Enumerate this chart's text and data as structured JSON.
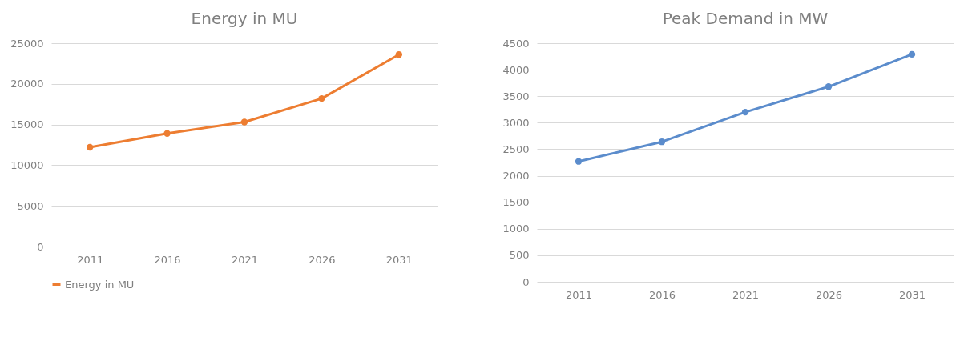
{
  "chart_data": [
    {
      "type": "line",
      "title": "Energy in MU",
      "categories": [
        "2011",
        "2016",
        "2021",
        "2026",
        "2031"
      ],
      "series": [
        {
          "name": "Energy in MU",
          "color": "#ed7d31",
          "values": [
            12200,
            13900,
            15300,
            18200,
            23600
          ]
        }
      ],
      "ylim": [
        0,
        25000
      ],
      "yticks": [
        0,
        5000,
        10000,
        15000,
        20000,
        25000
      ],
      "grid": "y",
      "legend": "bottom",
      "marker": "circle"
    },
    {
      "type": "line",
      "title": "Peak Demand in MW",
      "categories": [
        "2011",
        "2016",
        "2021",
        "2026",
        "2031"
      ],
      "series": [
        {
          "color": "#5b8ccc",
          "values": [
            2270,
            2640,
            3200,
            3680,
            4290
          ]
        }
      ],
      "ylim": [
        0,
        4500
      ],
      "yticks": [
        0,
        500,
        1000,
        1500,
        2000,
        2500,
        3000,
        3500,
        4000,
        4500
      ],
      "grid": "y",
      "marker": "circle"
    }
  ]
}
